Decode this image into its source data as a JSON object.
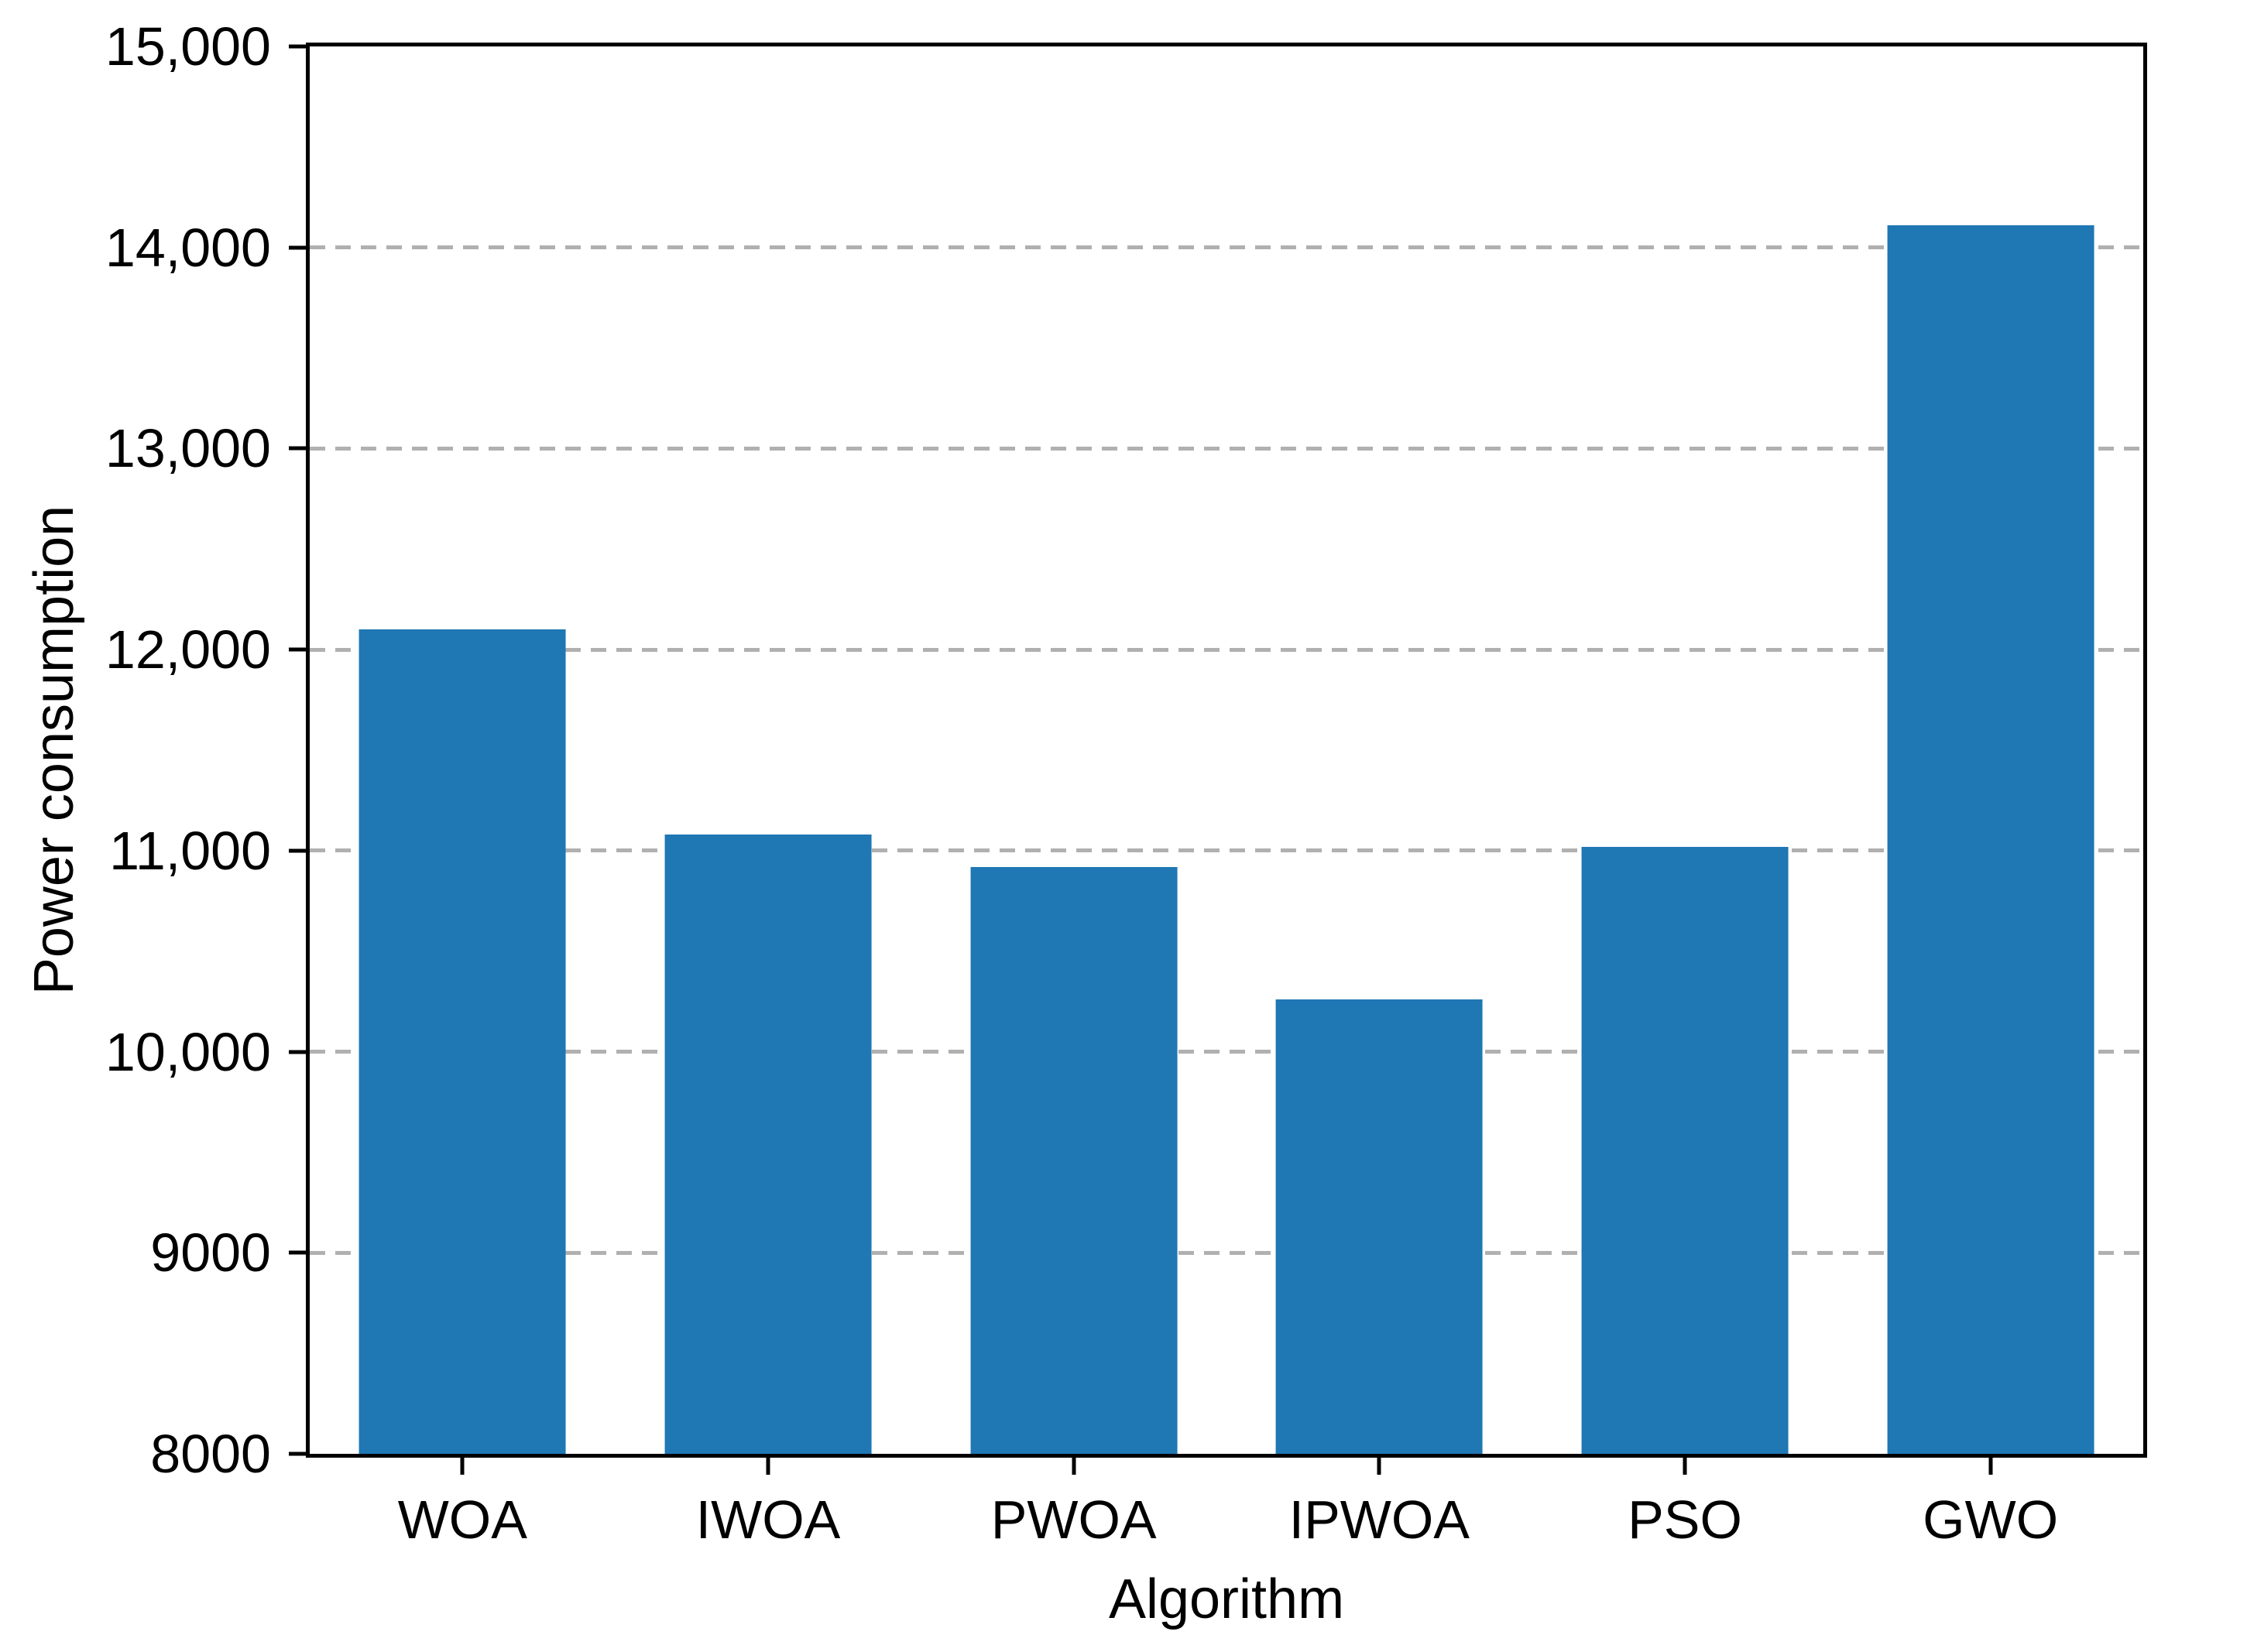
{
  "chart_data": {
    "type": "bar",
    "title": "",
    "xlabel": "Algorithm",
    "ylabel": "Power consumption",
    "categories": [
      "WOA",
      "IWOA",
      "PWOA",
      "IPWOA",
      "PSO",
      "GWO"
    ],
    "values": [
      12100,
      11080,
      10920,
      10260,
      11020,
      14110
    ],
    "ylim": [
      8000,
      15000
    ],
    "yticks": [
      {
        "value": 8000,
        "label": "8000"
      },
      {
        "value": 9000,
        "label": "9000"
      },
      {
        "value": 10000,
        "label": "10,000"
      },
      {
        "value": 11000,
        "label": "11,000"
      },
      {
        "value": 12000,
        "label": "12,000"
      },
      {
        "value": 13000,
        "label": "13,000"
      },
      {
        "value": 14000,
        "label": "14,000"
      },
      {
        "value": 15000,
        "label": "15,000"
      }
    ],
    "grid": "horizontal-dashed",
    "legend_position": "none",
    "bar_color": "#1f77b4",
    "grid_color": "#b0b0b0",
    "axis_color": "#000000"
  }
}
